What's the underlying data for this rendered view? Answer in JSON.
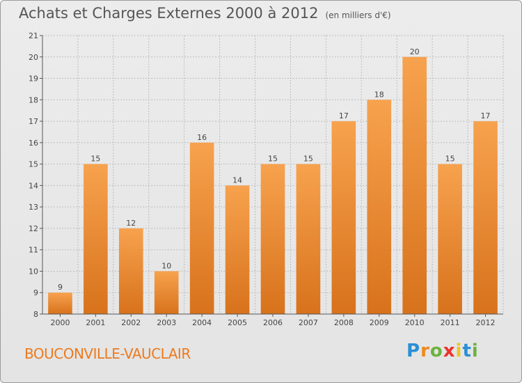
{
  "header": {
    "title": "Achats et Charges Externes 2000 à 2012",
    "subtitle": "(en milliers d'€)"
  },
  "footer": {
    "location": "BOUCONVILLE-VAUCLAIR",
    "logo_letters": [
      "P",
      "r",
      "o",
      "x",
      "i",
      "t",
      "i"
    ],
    "logo_colors": [
      "#2a8fd6",
      "#f08a1c",
      "#6cb33f",
      "#e8342d",
      "#f0c419",
      "#2a8fd6",
      "#6cb33f"
    ]
  },
  "colors": {
    "bar_top": "#f7a24e",
    "bar_bottom": "#d8721c",
    "grid": "#bdbdbd",
    "axis": "#555555"
  },
  "chart_data": {
    "type": "bar",
    "categories": [
      "2000",
      "2001",
      "2002",
      "2003",
      "2004",
      "2005",
      "2006",
      "2007",
      "2008",
      "2009",
      "2010",
      "2011",
      "2012"
    ],
    "values": [
      9,
      15,
      12,
      10,
      16,
      14,
      15,
      15,
      17,
      18,
      20,
      15,
      17
    ],
    "yticks": [
      8,
      9,
      10,
      11,
      12,
      13,
      14,
      15,
      16,
      17,
      18,
      19,
      20,
      21
    ],
    "ylim": [
      8,
      21
    ],
    "grid": true
  }
}
